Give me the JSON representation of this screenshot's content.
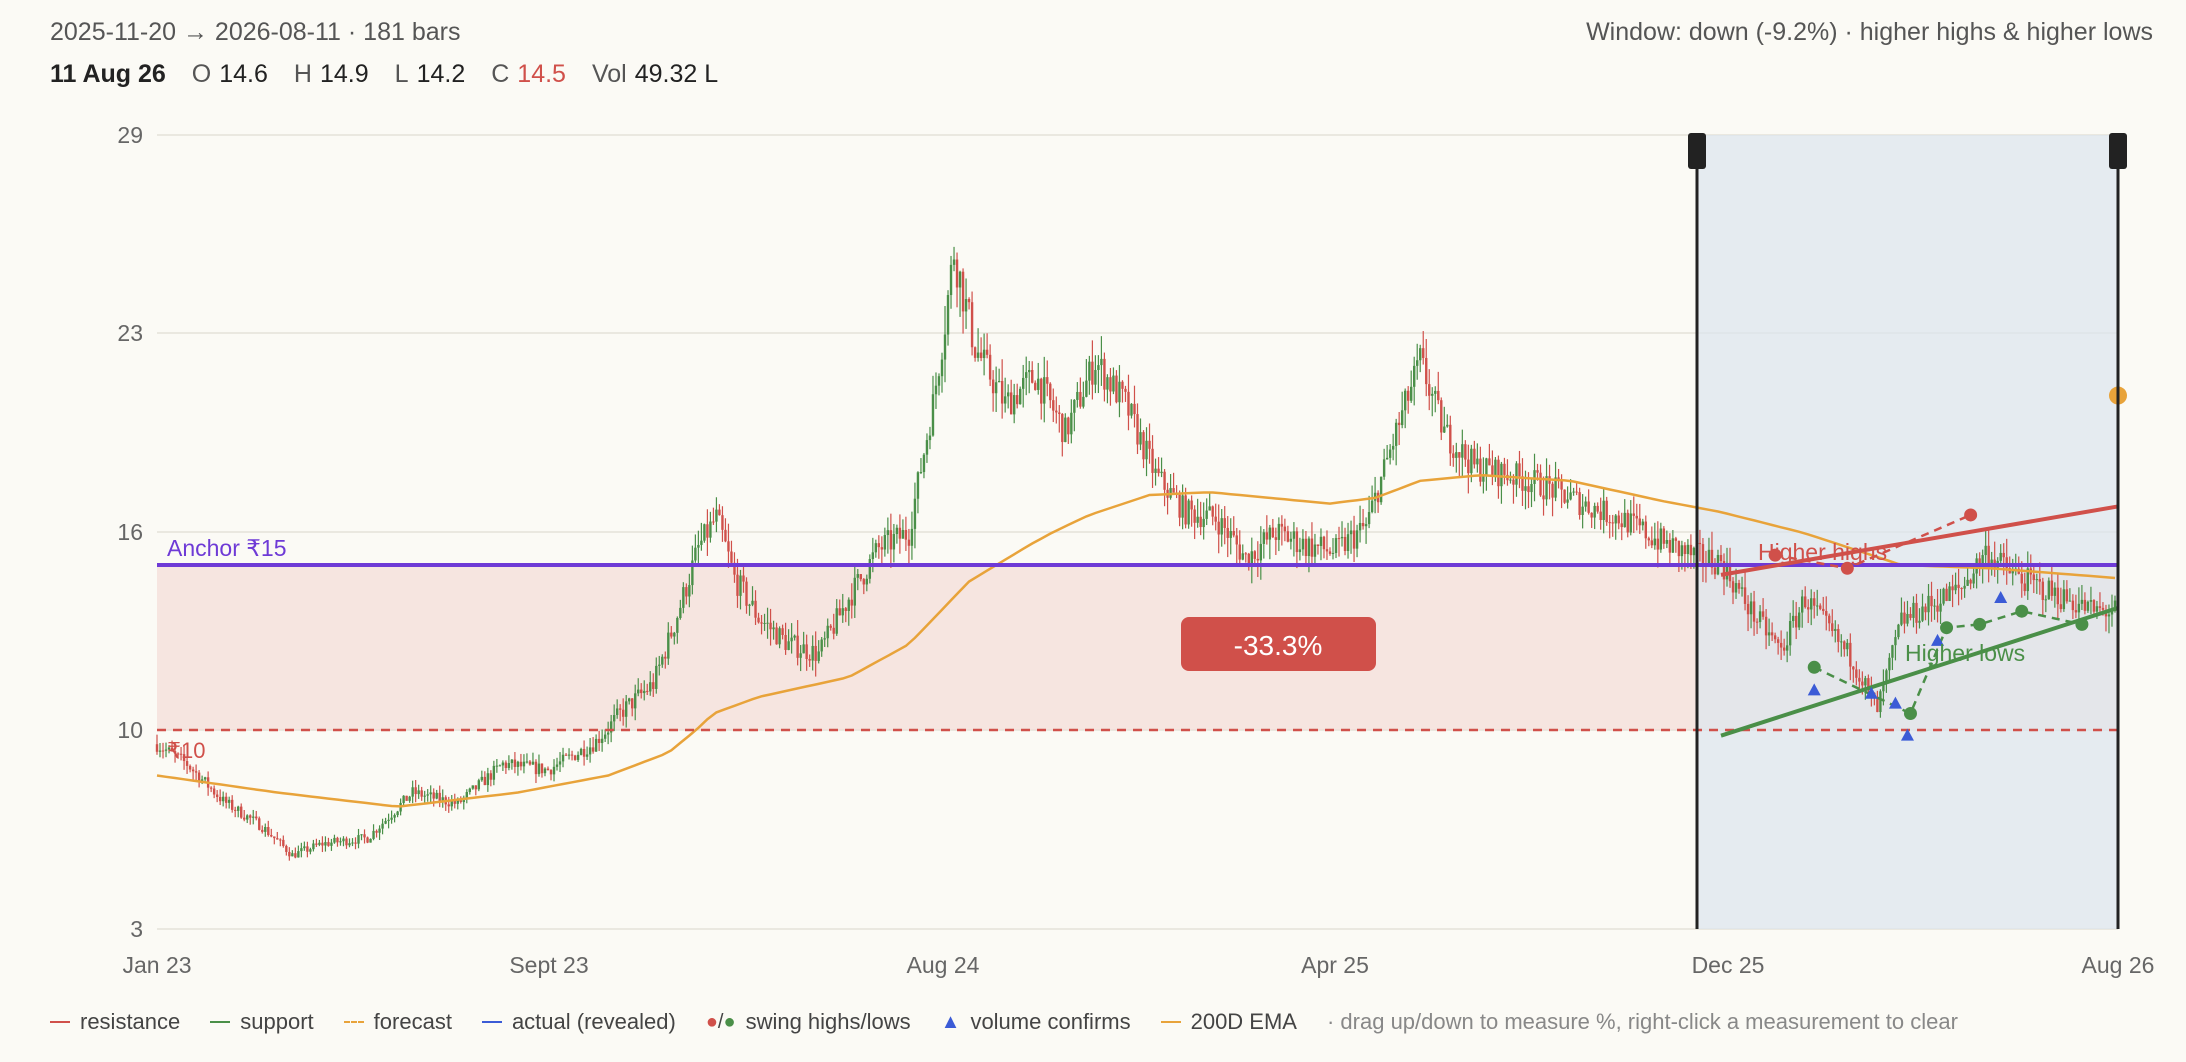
{
  "header": {
    "range_text": "2025-11-20 → 2026-08-11 · 181 bars",
    "window_text": "Window: down (-9.2%) · higher highs & higher lows"
  },
  "ohlc": {
    "date": "11 Aug 26",
    "open_label": "O",
    "open": "14.6",
    "high_label": "H",
    "high": "14.9",
    "low_label": "L",
    "low": "14.2",
    "close_label": "C",
    "close": "14.5",
    "vol_label": "Vol",
    "vol": "49.32 L"
  },
  "chart_data": {
    "type": "candlestick",
    "y_ticks": [
      "29",
      "23",
      "16",
      "10",
      "3"
    ],
    "x_ticks": [
      "Jan 23",
      "Sept 23",
      "Aug 24",
      "Apr 25",
      "Dec 25",
      "Aug 26"
    ],
    "ylim": [
      3,
      29
    ],
    "anchor_label": "Anchor ₹15",
    "anchor_value": 15,
    "floor_label": "₹10",
    "floor_value": 10,
    "measure_label": "-33.3%",
    "resistance_label": "Higher highs",
    "support_label": "Higher lows",
    "window": {
      "start": "Dec 25",
      "end": "Aug 26"
    },
    "forecast_value": 20.8,
    "price_path": [
      [
        0,
        9.5
      ],
      [
        10,
        8.8
      ],
      [
        22,
        7.5
      ],
      [
        35,
        6.6
      ],
      [
        45,
        5.6
      ],
      [
        55,
        6.0
      ],
      [
        70,
        6.2
      ],
      [
        85,
        7.8
      ],
      [
        100,
        7.4
      ],
      [
        115,
        8.8
      ],
      [
        130,
        8.6
      ],
      [
        145,
        9.5
      ],
      [
        155,
        10.6
      ],
      [
        165,
        11.4
      ],
      [
        172,
        13.2
      ],
      [
        180,
        15.5
      ],
      [
        186,
        16.5
      ],
      [
        192,
        14.6
      ],
      [
        200,
        13.4
      ],
      [
        210,
        12.6
      ],
      [
        220,
        12.3
      ],
      [
        230,
        14.0
      ],
      [
        240,
        15.5
      ],
      [
        250,
        16.0
      ],
      [
        258,
        20.5
      ],
      [
        265,
        25.5
      ],
      [
        272,
        22.5
      ],
      [
        282,
        20.5
      ],
      [
        292,
        21.5
      ],
      [
        302,
        19.5
      ],
      [
        312,
        22.0
      ],
      [
        322,
        20.5
      ],
      [
        332,
        18.0
      ],
      [
        342,
        16.7
      ],
      [
        352,
        16.5
      ],
      [
        362,
        15.2
      ],
      [
        372,
        16.0
      ],
      [
        382,
        15.6
      ],
      [
        392,
        15.4
      ],
      [
        402,
        16.2
      ],
      [
        412,
        19.5
      ],
      [
        420,
        22.0
      ],
      [
        428,
        19.5
      ],
      [
        438,
        18.3
      ],
      [
        450,
        18.0
      ],
      [
        462,
        17.6
      ],
      [
        474,
        17.0
      ],
      [
        488,
        16.4
      ],
      [
        500,
        15.7
      ],
      [
        510,
        15.3
      ],
      [
        520,
        15.1
      ],
      [
        530,
        13.6
      ],
      [
        540,
        12.4
      ],
      [
        548,
        14.0
      ],
      [
        556,
        13.0
      ],
      [
        564,
        12.1
      ],
      [
        572,
        10.6
      ],
      [
        580,
        13.3
      ],
      [
        590,
        13.8
      ],
      [
        600,
        14.3
      ],
      [
        608,
        15.4
      ],
      [
        616,
        14.8
      ],
      [
        624,
        14.4
      ],
      [
        634,
        14.0
      ],
      [
        644,
        13.6
      ],
      [
        652,
        13.6
      ]
    ],
    "ema_path": [
      [
        0,
        8.4
      ],
      [
        40,
        7.8
      ],
      [
        80,
        7.3
      ],
      [
        120,
        7.8
      ],
      [
        150,
        8.4
      ],
      [
        170,
        9.2
      ],
      [
        185,
        10.5
      ],
      [
        200,
        11.0
      ],
      [
        230,
        11.6
      ],
      [
        250,
        12.6
      ],
      [
        270,
        14.5
      ],
      [
        290,
        15.6
      ],
      [
        310,
        16.6
      ],
      [
        330,
        17.3
      ],
      [
        350,
        17.4
      ],
      [
        370,
        17.2
      ],
      [
        390,
        17.0
      ],
      [
        405,
        17.2
      ],
      [
        420,
        17.8
      ],
      [
        440,
        18.0
      ],
      [
        470,
        17.8
      ],
      [
        500,
        17.1
      ],
      [
        520,
        16.7
      ],
      [
        550,
        15.9
      ],
      [
        580,
        15.0
      ],
      [
        610,
        14.9
      ],
      [
        652,
        14.6
      ]
    ],
    "support_line": {
      "from": [
        520,
        9.8
      ],
      "to": [
        652,
        13.7
      ]
    },
    "resistance_line": {
      "from": [
        520,
        14.7
      ],
      "to": [
        652,
        16.9
      ]
    },
    "swing_highs": [
      [
        538,
        15.3
      ],
      [
        562,
        14.9
      ],
      [
        603,
        16.6
      ]
    ],
    "swing_lows": [
      [
        551,
        11.9
      ],
      [
        583,
        10.5
      ],
      [
        595,
        13.1
      ],
      [
        606,
        13.2
      ],
      [
        620,
        13.6
      ],
      [
        640,
        13.2
      ]
    ],
    "volume_confirms": [
      [
        551,
        11.2
      ],
      [
        570,
        11.1
      ],
      [
        578,
        10.8
      ],
      [
        582,
        9.8
      ],
      [
        592,
        12.7
      ],
      [
        613,
        14.0
      ]
    ]
  },
  "legend": {
    "resistance": "resistance",
    "support": "support",
    "forecast": "forecast",
    "actual": "actual (revealed)",
    "swing": "swing highs/lows",
    "volume": "volume confirms",
    "ema": "200D EMA",
    "hint": "· drag up/down to measure %, right-click a measurement to clear"
  }
}
